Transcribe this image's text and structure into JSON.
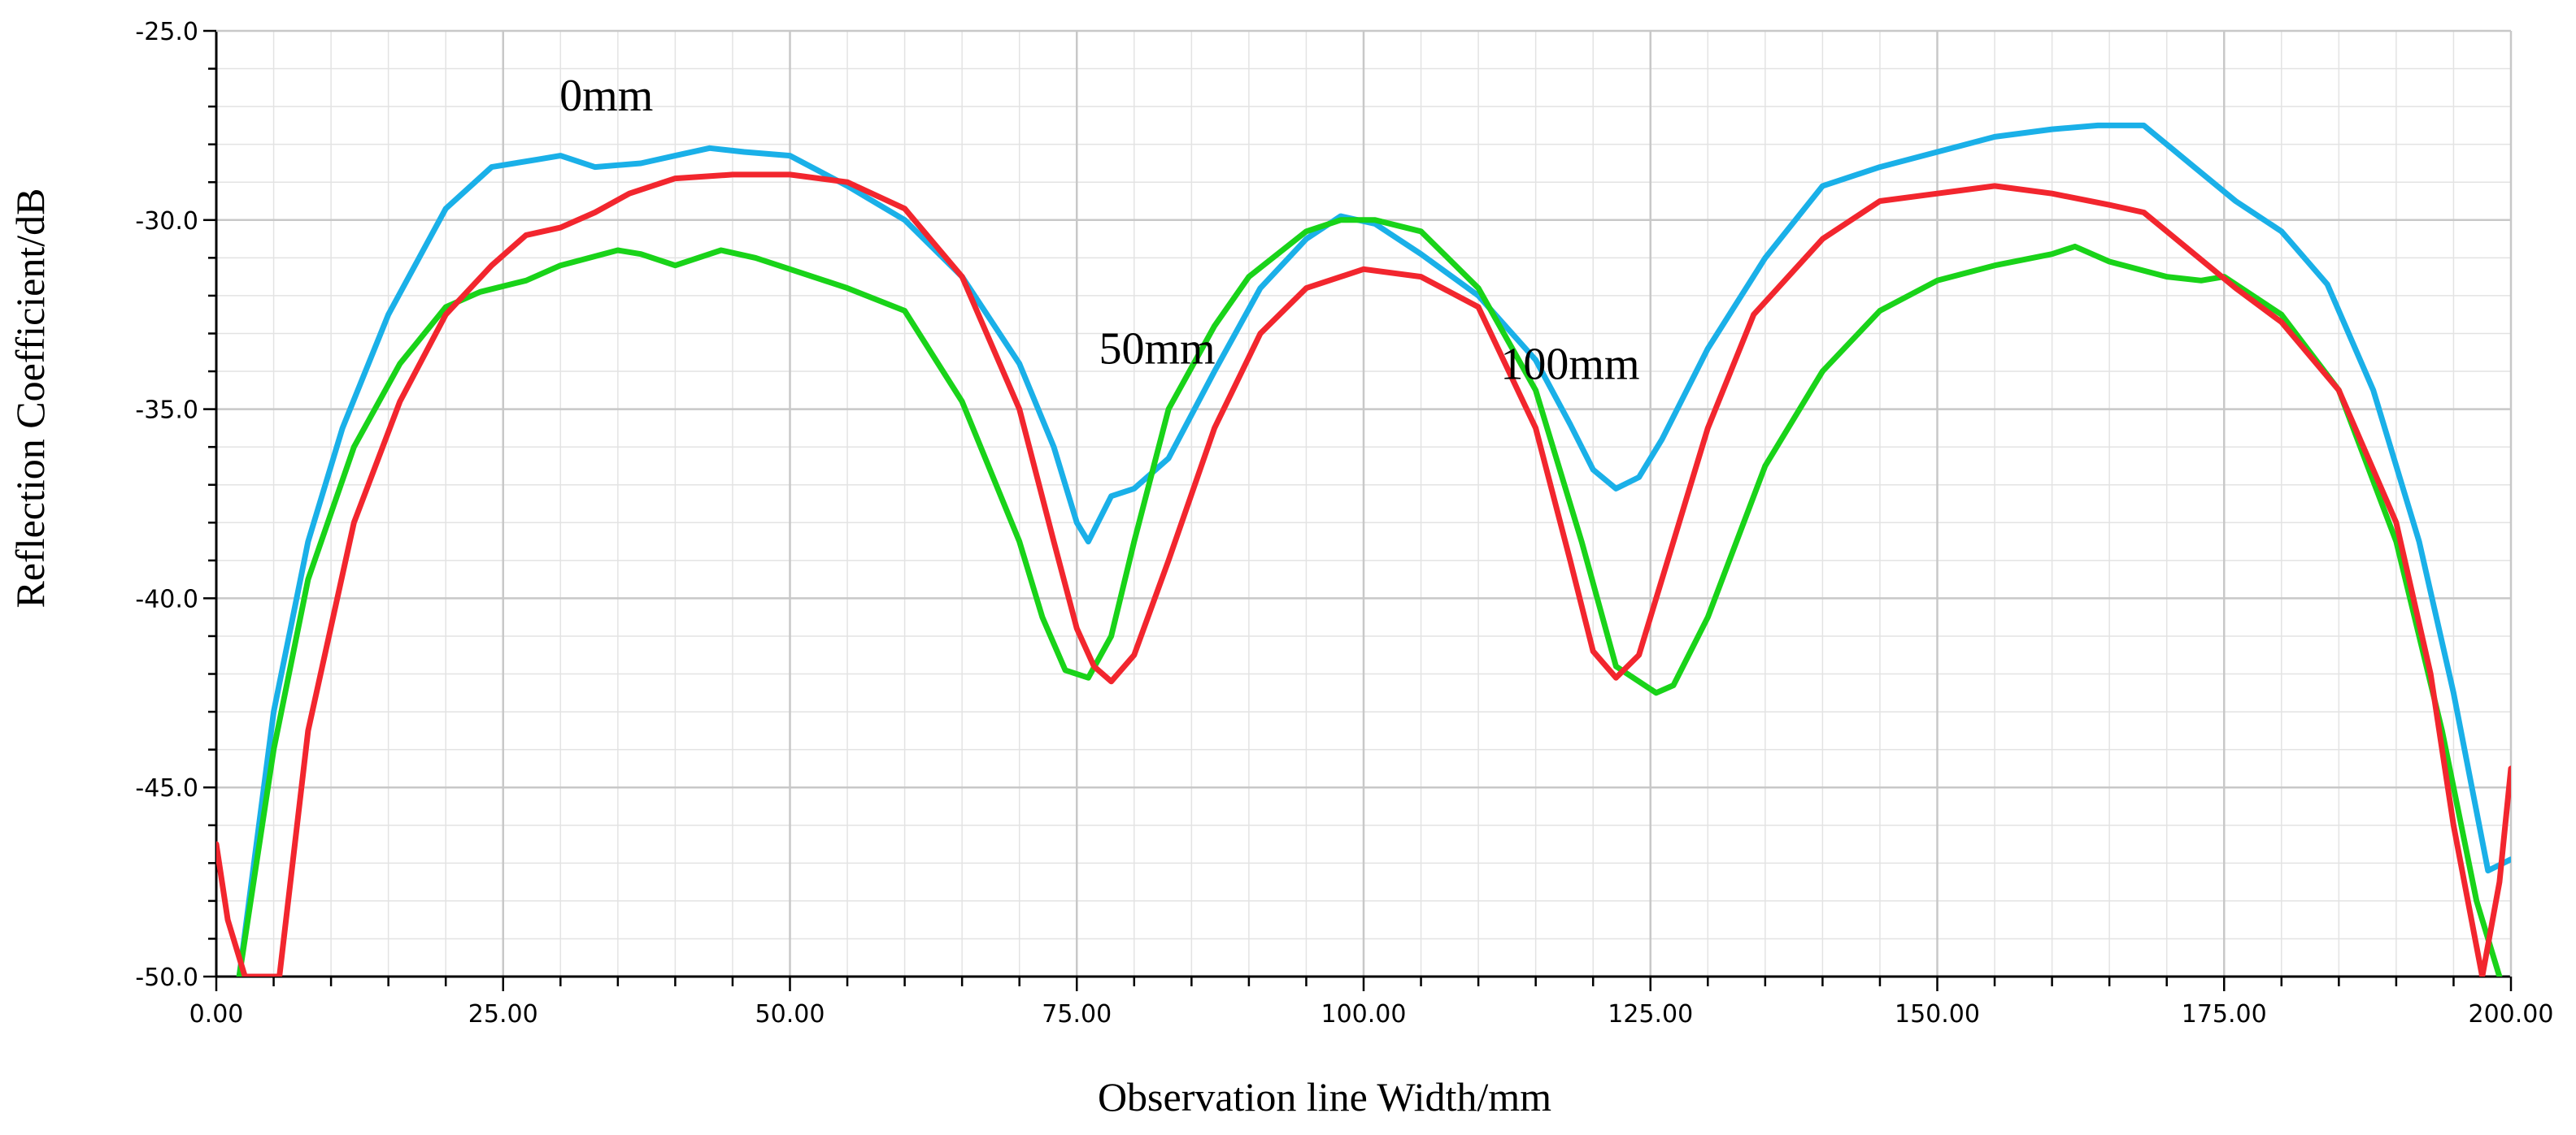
{
  "chart_data": {
    "type": "line",
    "title": "",
    "xlabel": "Observation line Width/mm",
    "ylabel": "Reflection Coefficient/dB",
    "xlim": [
      0,
      200
    ],
    "ylim": [
      -50,
      -25
    ],
    "xticks": [
      "0.00",
      "25.00",
      "50.00",
      "75.00",
      "100.00",
      "125.00",
      "150.00",
      "175.00",
      "200.00"
    ],
    "yticks": [
      "-25.0",
      "-30.0",
      "-35.0",
      "-40.0",
      "-45.0",
      "-50.0"
    ],
    "grid": true,
    "colors": {
      "0mm": "#1ab0e8",
      "50mm": "#19d319",
      "100mm": "#f2262e",
      "grid": "#c8c8c8",
      "axis": "#000000"
    },
    "series": [
      {
        "name": "0mm",
        "x": [
          2,
          5,
          8,
          11,
          15,
          20,
          24,
          28,
          30,
          33,
          37,
          40,
          43,
          46,
          50,
          55,
          60,
          65,
          70,
          73,
          75,
          76,
          78,
          80,
          83,
          87,
          91,
          95,
          98,
          101,
          105,
          110,
          115,
          118,
          120,
          122,
          124,
          126,
          130,
          135,
          140,
          145,
          150,
          155,
          160,
          164,
          168,
          172,
          176,
          180,
          184,
          188,
          192,
          195,
          198,
          200
        ],
        "values": [
          -50,
          -43,
          -38.5,
          -35.5,
          -32.5,
          -29.7,
          -28.6,
          -28.4,
          -28.3,
          -28.6,
          -28.5,
          -28.3,
          -28.1,
          -28.2,
          -28.3,
          -29.1,
          -30,
          -31.5,
          -33.8,
          -36,
          -38,
          -38.5,
          -37.3,
          -37.1,
          -36.3,
          -34,
          -31.8,
          -30.5,
          -29.9,
          -30.1,
          -30.9,
          -32,
          -33.7,
          -35.4,
          -36.6,
          -37.1,
          -36.8,
          -35.8,
          -33.4,
          -31,
          -29.1,
          -28.6,
          -28.2,
          -27.8,
          -27.6,
          -27.5,
          -27.5,
          -28.5,
          -29.5,
          -30.3,
          -31.7,
          -34.5,
          -38.5,
          -42.5,
          -47.2,
          -46.9
        ]
      },
      {
        "name": "50mm",
        "x": [
          2,
          5,
          8,
          12,
          16,
          20,
          23,
          27,
          30,
          35,
          37,
          40,
          44,
          47,
          50,
          55,
          60,
          65,
          70,
          72,
          74,
          76,
          78,
          80,
          83,
          87,
          90,
          95,
          98,
          101,
          105,
          110,
          115,
          119,
          122,
          124,
          125.5,
          127,
          130,
          135,
          140,
          145,
          150,
          155,
          160,
          162,
          165,
          170,
          173,
          175,
          180,
          185,
          190,
          194,
          197,
          199
        ],
        "values": [
          -50,
          -44,
          -39.5,
          -36,
          -33.8,
          -32.3,
          -31.9,
          -31.6,
          -31.2,
          -30.8,
          -30.9,
          -31.2,
          -30.8,
          -31,
          -31.3,
          -31.8,
          -32.4,
          -34.8,
          -38.5,
          -40.5,
          -41.9,
          -42.1,
          -41,
          -38.5,
          -35,
          -32.8,
          -31.5,
          -30.3,
          -30,
          -30,
          -30.3,
          -31.8,
          -34.5,
          -38.5,
          -41.8,
          -42.2,
          -42.5,
          -42.3,
          -40.5,
          -36.5,
          -34,
          -32.4,
          -31.6,
          -31.2,
          -30.9,
          -30.7,
          -31.1,
          -31.5,
          -31.6,
          -31.5,
          -32.5,
          -34.5,
          -38.5,
          -43.5,
          -48,
          -50
        ]
      },
      {
        "name": "100mm",
        "x": [
          0,
          1,
          2.5,
          5.5,
          8,
          12,
          16,
          20,
          24,
          27,
          30,
          33,
          36,
          40,
          45,
          50,
          55,
          60,
          65,
          70,
          73,
          75,
          76.5,
          78,
          80,
          83,
          87,
          91,
          95,
          100,
          105,
          110,
          115,
          118,
          120,
          122,
          124,
          127,
          130,
          134,
          140,
          145,
          150,
          155,
          160,
          165,
          168,
          172,
          176,
          180,
          185,
          190,
          193,
          195,
          197.5,
          199,
          200
        ],
        "values": [
          -46.5,
          -48.5,
          -50,
          -50,
          -43.5,
          -38,
          -34.8,
          -32.5,
          -31.2,
          -30.4,
          -30.2,
          -29.8,
          -29.3,
          -28.9,
          -28.8,
          -28.8,
          -29,
          -29.7,
          -31.5,
          -35,
          -38.5,
          -40.8,
          -41.8,
          -42.2,
          -41.5,
          -39,
          -35.5,
          -33,
          -31.8,
          -31.3,
          -31.5,
          -32.3,
          -35.5,
          -39,
          -41.4,
          -42.1,
          -41.5,
          -38.5,
          -35.5,
          -32.5,
          -30.5,
          -29.5,
          -29.3,
          -29.1,
          -29.3,
          -29.6,
          -29.8,
          -30.8,
          -31.8,
          -32.7,
          -34.5,
          -38,
          -42,
          -46,
          -50,
          -47.5,
          -44.5
        ]
      }
    ],
    "annotations": [
      {
        "text": "0mm",
        "series": "0mm"
      },
      {
        "text": "50mm",
        "series": "50mm"
      },
      {
        "text": "100mm",
        "series": "100mm"
      }
    ]
  }
}
